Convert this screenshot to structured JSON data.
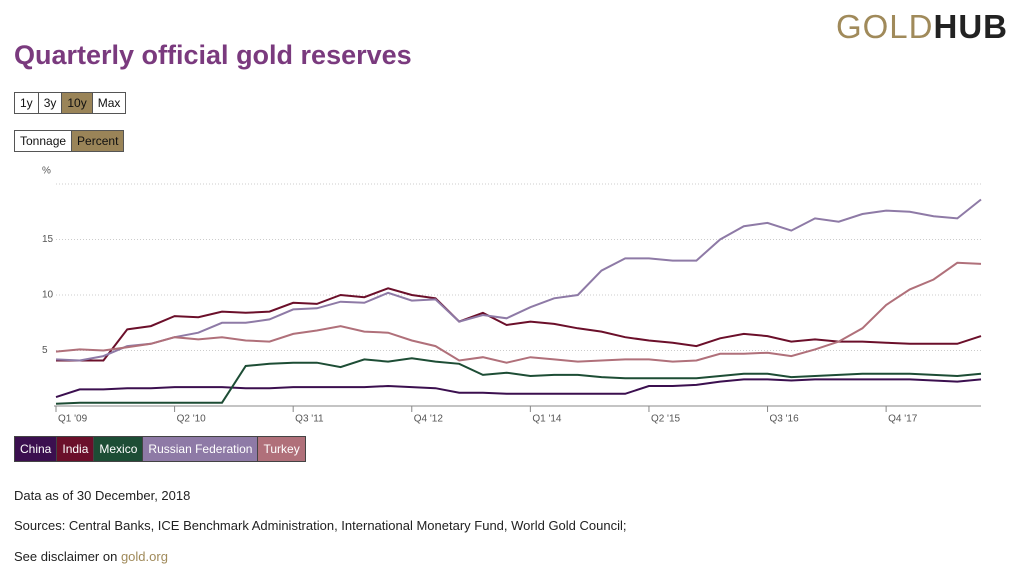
{
  "logo": {
    "part1": "GOLD",
    "part2": "HUB"
  },
  "range_buttons": [
    "1y",
    "3y",
    "10y",
    "Max"
  ],
  "unit_buttons": [
    "Tonnage",
    "Percent"
  ],
  "footer": {
    "as_of": "Data as of 30 December, 2018",
    "sources": "Sources: Central Banks, ICE Benchmark Administration, International Monetary Fund, World Gold Council;",
    "disclaimer": "See disclaimer on",
    "link": "gold.org"
  },
  "chart_data": {
    "type": "line",
    "title": "Quarterly official gold reserves",
    "categories": [
      "Q1 '09",
      null,
      null,
      null,
      null,
      "Q2 '10",
      null,
      null,
      null,
      null,
      "Q3 '11",
      null,
      null,
      null,
      null,
      "Q4 '12",
      null,
      null,
      null,
      null,
      "Q1 '14",
      null,
      null,
      null,
      null,
      "Q2 '15",
      null,
      null,
      null,
      null,
      "Q3 '16",
      null,
      null,
      null,
      null,
      "Q4 '17",
      null,
      null,
      null,
      null
    ],
    "ylim": [
      0,
      20
    ],
    "yticks": [
      5,
      10,
      15,
      {
        "value": 20,
        "label": "%"
      }
    ],
    "grid": true,
    "series": [
      {
        "name": "China",
        "color": "#3b0f4f",
        "values": [
          0.8,
          1.5,
          1.5,
          1.6,
          1.6,
          1.7,
          1.7,
          1.7,
          1.6,
          1.6,
          1.7,
          1.7,
          1.7,
          1.7,
          1.8,
          1.7,
          1.6,
          1.2,
          1.2,
          1.1,
          1.1,
          1.1,
          1.1,
          1.1,
          1.1,
          1.8,
          1.8,
          1.9,
          2.2,
          2.4,
          2.4,
          2.3,
          2.4,
          2.4,
          2.4,
          2.4,
          2.4,
          2.3,
          2.2,
          2.4
        ]
      },
      {
        "name": "India",
        "color": "#6b0f2a",
        "values": [
          4.1,
          4.1,
          4.1,
          6.9,
          7.2,
          8.1,
          8.0,
          8.5,
          8.4,
          8.5,
          9.3,
          9.2,
          10.0,
          9.8,
          10.6,
          10.0,
          9.7,
          7.6,
          8.4,
          7.3,
          7.6,
          7.4,
          7.0,
          6.7,
          6.2,
          5.9,
          5.7,
          5.4,
          6.1,
          6.5,
          6.3,
          5.8,
          6.0,
          5.8,
          5.8,
          5.7,
          5.6,
          5.6,
          5.6,
          6.3
        ]
      },
      {
        "name": "Mexico",
        "color": "#1d4d35",
        "values": [
          0.2,
          0.3,
          0.3,
          0.3,
          0.3,
          0.3,
          0.3,
          0.3,
          3.6,
          3.8,
          3.9,
          3.9,
          3.5,
          4.2,
          4.0,
          4.3,
          4.0,
          3.8,
          2.8,
          3.0,
          2.7,
          2.8,
          2.8,
          2.6,
          2.5,
          2.5,
          2.5,
          2.5,
          2.7,
          2.9,
          2.9,
          2.6,
          2.7,
          2.8,
          2.9,
          2.9,
          2.9,
          2.8,
          2.7,
          2.9
        ]
      },
      {
        "name": "Russian Federation",
        "color": "#8e7aa6",
        "values": [
          4.2,
          4.1,
          4.5,
          5.4,
          5.6,
          6.2,
          6.6,
          7.5,
          7.5,
          7.8,
          8.7,
          8.8,
          9.4,
          9.3,
          10.2,
          9.5,
          9.6,
          7.6,
          8.2,
          7.9,
          8.9,
          9.7,
          10.0,
          12.2,
          13.3,
          13.3,
          13.1,
          13.1,
          15.0,
          16.2,
          16.5,
          15.8,
          16.9,
          16.6,
          17.3,
          17.6,
          17.5,
          17.1,
          16.9,
          18.6
        ]
      },
      {
        "name": "Turkey",
        "color": "#b0707a",
        "values": [
          4.9,
          5.1,
          5.0,
          5.3,
          5.6,
          6.2,
          6.0,
          6.2,
          5.9,
          5.8,
          6.5,
          6.8,
          7.2,
          6.7,
          6.6,
          5.9,
          5.4,
          4.1,
          4.4,
          3.9,
          4.4,
          4.2,
          4.0,
          4.1,
          4.2,
          4.2,
          4.0,
          4.1,
          4.7,
          4.7,
          4.8,
          4.5,
          5.1,
          5.8,
          7.0,
          9.1,
          10.5,
          11.4,
          12.9,
          12.8
        ]
      }
    ]
  }
}
